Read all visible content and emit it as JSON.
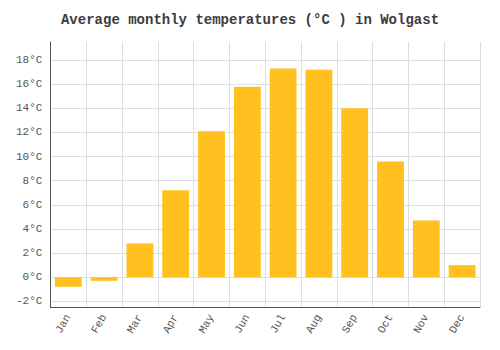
{
  "chart_data": {
    "type": "bar",
    "title": "Average monthly temperatures (°C ) in Wolgast",
    "categories": [
      "Jan",
      "Feb",
      "Mar",
      "Apr",
      "May",
      "Jun",
      "Jul",
      "Aug",
      "Sep",
      "Oct",
      "Nov",
      "Dec"
    ],
    "values": [
      -0.8,
      -0.3,
      2.8,
      7.2,
      12.1,
      15.8,
      17.3,
      17.2,
      14.0,
      9.6,
      4.7,
      1.0
    ],
    "color": "#FFC020",
    "ylim": [
      -2.5,
      19.5
    ],
    "yticks": [
      {
        "value": -2,
        "label": "-2°C"
      },
      {
        "value": 0,
        "label": "0°C"
      },
      {
        "value": 2,
        "label": "2°C"
      },
      {
        "value": 4,
        "label": "4°C"
      },
      {
        "value": 6,
        "label": "6°C"
      },
      {
        "value": 8,
        "label": "8°C"
      },
      {
        "value": 10,
        "label": "10°C"
      },
      {
        "value": 12,
        "label": "12°C"
      },
      {
        "value": 14,
        "label": "14°C"
      },
      {
        "value": 16,
        "label": "16°C"
      },
      {
        "value": 18,
        "label": "18°C"
      }
    ],
    "grid": true
  }
}
